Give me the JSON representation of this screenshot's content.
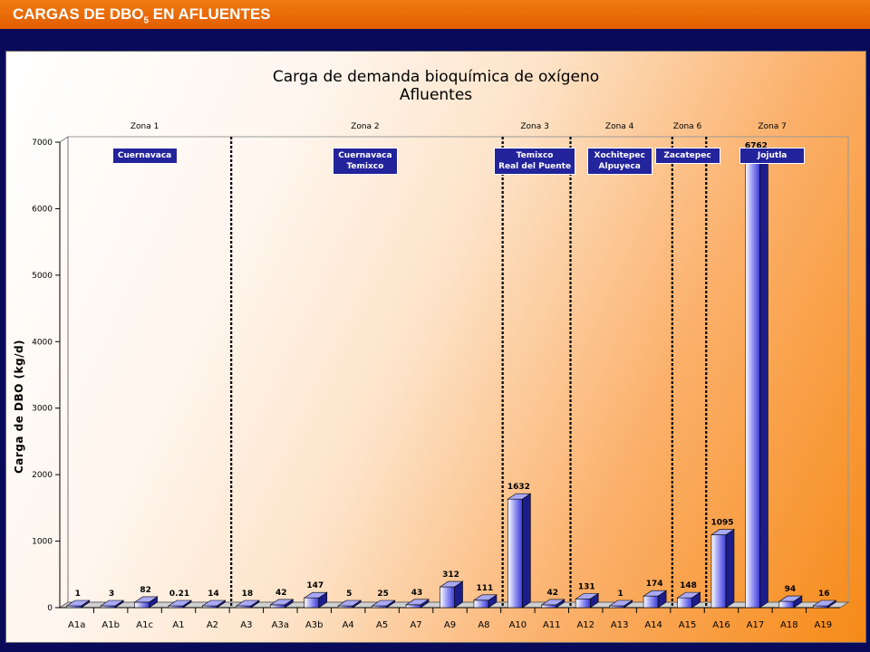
{
  "header": {
    "title_main": "CARGAS DE DBO",
    "title_sub": "5",
    "title_tail": " EN AFLUENTES"
  },
  "chart_data": {
    "type": "bar",
    "title": "Carga de demanda bioquímica de oxígeno",
    "subtitle": "Afluentes",
    "xlabel": "",
    "ylabel": "Carga de DBO (kg/d)",
    "ylim": [
      0,
      7000
    ],
    "yticks": [
      0,
      1000,
      2000,
      3000,
      4000,
      5000,
      6000,
      7000
    ],
    "grid": false,
    "categories": [
      "A1a",
      "A1b",
      "A1c",
      "A1",
      "A2",
      "A3",
      "A3a",
      "A3b",
      "A4",
      "A5",
      "A7",
      "A9",
      "A8",
      "A10",
      "A11",
      "A12",
      "A13",
      "A14",
      "A15",
      "A16",
      "A17",
      "A18",
      "A19"
    ],
    "values": [
      1,
      3,
      82,
      0.21,
      14,
      18,
      42,
      147,
      5,
      25,
      43,
      312,
      111,
      1632,
      42,
      131,
      1,
      174,
      148,
      1095,
      6762,
      94,
      16
    ],
    "value_labels": [
      "1",
      "3",
      "82",
      "0.21",
      "14",
      "18",
      "42",
      "147",
      "5",
      "25",
      "43",
      "312",
      "111",
      "1632",
      "42",
      "131",
      "1",
      "174",
      "148",
      "1095",
      "6762",
      "94",
      "16"
    ],
    "bar_color": "#3b3bd6",
    "zones": [
      {
        "label": "Zona 1",
        "start": 0,
        "end": 5,
        "cities": [
          "Cuernavaca"
        ]
      },
      {
        "label": "Zona  2",
        "start": 5,
        "end": 13,
        "cities": [
          "Cuernavaca",
          "Temixco"
        ]
      },
      {
        "label": "Zona 3",
        "start": 13,
        "end": 15,
        "cities": [
          "Temixco",
          "Real del Puente"
        ]
      },
      {
        "label": "Zona 4",
        "start": 15,
        "end": 18,
        "cities": [
          "Xochitepec",
          "Alpuyeca"
        ]
      },
      {
        "label": "Zona 6",
        "start": 18,
        "end": 19,
        "cities": [
          "Zacatepec"
        ]
      },
      {
        "label": "Zona 7",
        "start": 19,
        "end": 23,
        "cities": [
          "Jojutla"
        ]
      }
    ]
  }
}
